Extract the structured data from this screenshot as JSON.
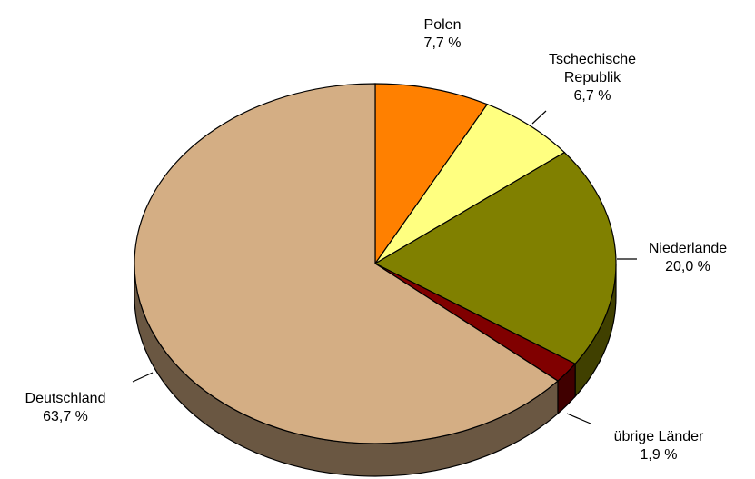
{
  "chart_data": {
    "type": "pie3d",
    "categories": [
      "Polen",
      "Tschechische Republik",
      "Niederlande",
      "übrige Länder",
      "Deutschland"
    ],
    "values": [
      7.7,
      6.7,
      20.0,
      1.9,
      63.7
    ],
    "value_labels": [
      "7,7 %",
      "6,7 %",
      "20,0 %",
      "1,9 %",
      "63,7 %"
    ],
    "colors": [
      "#ff8000",
      "#ffff80",
      "#808000",
      "#800000",
      "#d4ae84"
    ]
  }
}
